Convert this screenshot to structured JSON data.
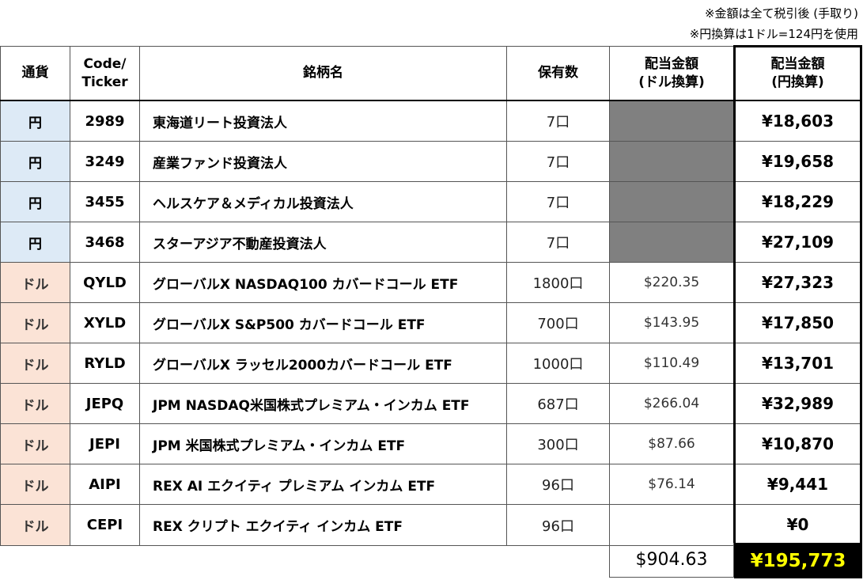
{
  "notes": [
    "※金額は全て税引後 (手取り)",
    "※円換算は1ドル=124円を使用"
  ],
  "headers": {
    "currency": "通貨",
    "code_line1": "Code/",
    "code_line2": "Ticker",
    "name": "銘柄名",
    "qty": "保有数",
    "usd_line1": "配当金額",
    "usd_line2": "(ドル換算)",
    "yen_line1": "配当金額",
    "yen_line2": "(円換算)"
  },
  "rows": [
    {
      "currency": "円",
      "code": "2989",
      "name": "東海道リート投資法人",
      "qty": "7口",
      "usd": "",
      "yen": "¥18,603"
    },
    {
      "currency": "円",
      "code": "3249",
      "name": "産業ファンド投資法人",
      "qty": "7口",
      "usd": "",
      "yen": "¥19,658"
    },
    {
      "currency": "円",
      "code": "3455",
      "name": "ヘルスケア＆メディカル投資法人",
      "qty": "7口",
      "usd": "",
      "yen": "¥18,229"
    },
    {
      "currency": "円",
      "code": "3468",
      "name": "スターアジア不動産投資法人",
      "qty": "7口",
      "usd": "",
      "yen": "¥27,109"
    },
    {
      "currency": "ドル",
      "code": "QYLD",
      "name": "グローバルX NASDAQ100 カバードコール ETF",
      "qty": "1800口",
      "usd": "$220.35",
      "yen": "¥27,323"
    },
    {
      "currency": "ドル",
      "code": "XYLD",
      "name": "グローバルX S&P500 カバードコール ETF",
      "qty": "700口",
      "usd": "$143.95",
      "yen": "¥17,850"
    },
    {
      "currency": "ドル",
      "code": "RYLD",
      "name": "グローバルX ラッセル2000カバードコール ETF",
      "qty": "1000口",
      "usd": "$110.49",
      "yen": "¥13,701"
    },
    {
      "currency": "ドル",
      "code": "JEPQ",
      "name": "JPM NASDAQ米国株式プレミアム・インカム ETF",
      "qty": "687口",
      "usd": "$266.04",
      "yen": "¥32,989"
    },
    {
      "currency": "ドル",
      "code": "JEPI",
      "name": "JPM 米国株式プレミアム・インカム ETF",
      "qty": "300口",
      "usd": "$87.66",
      "yen": "¥10,870"
    },
    {
      "currency": "ドル",
      "code": "AIPI",
      "name": "REX AI エクイティ プレミアム インカム ETF",
      "qty": "96口",
      "usd": "$76.14",
      "yen": "¥9,441"
    },
    {
      "currency": "ドル",
      "code": "CEPI",
      "name": "REX クリプト エクイティ インカム ETF",
      "qty": "96口",
      "usd": "",
      "yen": "¥0"
    }
  ],
  "totals": {
    "usd": "$904.63",
    "yen": "¥195,773"
  },
  "colors": {
    "yen_currency_bg": "#ddeaf6",
    "usd_currency_bg": "#fbe3d6",
    "masked_cell": "#808080",
    "total_bg": "#000000",
    "total_text": "#ffff00"
  }
}
